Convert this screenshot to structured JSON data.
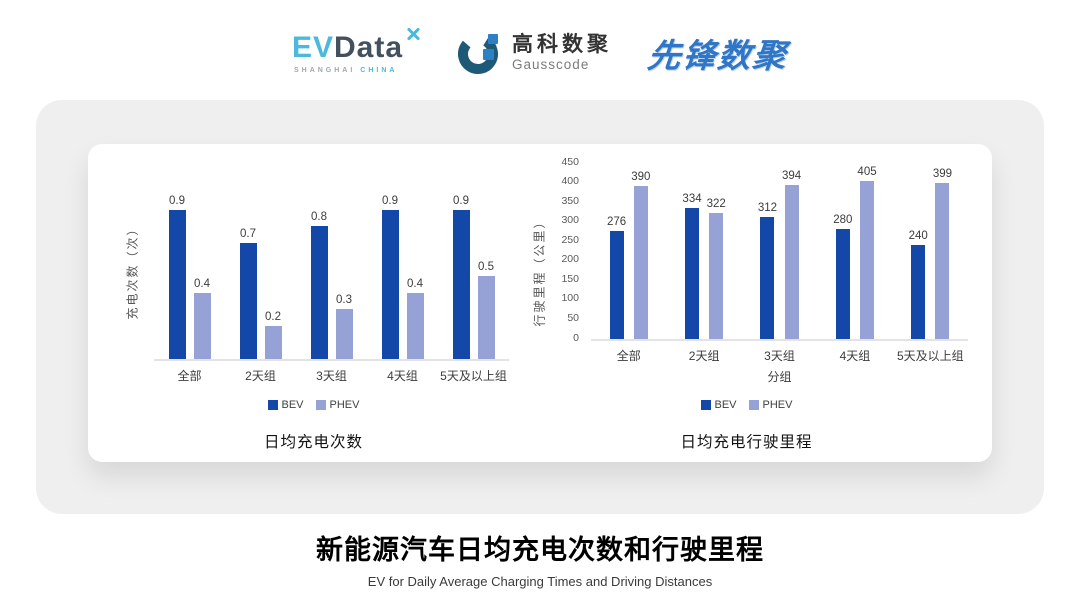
{
  "header": {
    "evdata": {
      "ev": "EV",
      "data": "Data",
      "sub_shanghai": "SHANGHAI",
      "sub_china": "CHINA"
    },
    "gausscode": {
      "name_cn": "高科数聚",
      "name_en": "Gausscode"
    },
    "pioneer": {
      "name_cn": "先锋数聚"
    }
  },
  "colors": {
    "bev": "#1348A9",
    "phev": "#96A1D6",
    "panel_bg": "#EFEFEF",
    "card_bg": "#FFFFFF",
    "axis_line": "#E3E3E3",
    "evdata_cyan": "#4BB9DC",
    "evdata_dark": "#43505D",
    "gauss_arc": "#1E5A78",
    "gauss_accent": "#2E80C4",
    "pioneer_blue": "#2F76C6"
  },
  "chart_data": [
    {
      "type": "bar",
      "title": "日均充电次数",
      "xlabel": "",
      "ylabel": "充电次数（次）",
      "categories": [
        "全部",
        "2天组",
        "3天组",
        "4天组",
        "5天及以上组"
      ],
      "series": [
        {
          "name": "BEV",
          "color": "#1348A9",
          "values": [
            0.9,
            0.7,
            0.8,
            0.9,
            0.9
          ]
        },
        {
          "name": "PHEV",
          "color": "#96A1D6",
          "values": [
            0.4,
            0.2,
            0.3,
            0.4,
            0.5
          ]
        }
      ],
      "ylim": [
        0,
        1.0
      ],
      "yticks": [],
      "grid": false,
      "legend_position": "bottom",
      "value_labels_shown": true
    },
    {
      "type": "bar",
      "title": "日均充电行驶里程",
      "xlabel": "分组",
      "ylabel": "行驶里程（公里）",
      "categories": [
        "全部",
        "2天组",
        "3天组",
        "4天组",
        "5天及以上组"
      ],
      "series": [
        {
          "name": "BEV",
          "color": "#1348A9",
          "values": [
            276,
            334,
            312,
            280,
            240
          ]
        },
        {
          "name": "PHEV",
          "color": "#96A1D6",
          "values": [
            390,
            322,
            394,
            405,
            399
          ]
        }
      ],
      "ylim": [
        0,
        450
      ],
      "yticks": [
        0,
        50,
        100,
        150,
        200,
        250,
        300,
        350,
        400,
        450
      ],
      "grid": false,
      "legend_position": "bottom",
      "value_labels_shown": true
    }
  ],
  "footer": {
    "title": "新能源汽车日均充电次数和行驶里程",
    "subtitle": "EV for Daily Average Charging Times and Driving Distances"
  }
}
